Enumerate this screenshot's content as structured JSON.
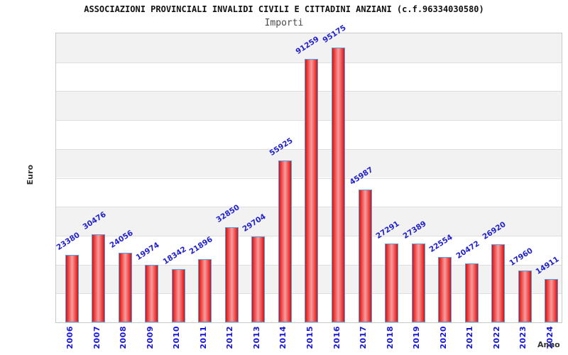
{
  "chart_data": {
    "type": "bar",
    "title": "ASSOCIAZIONI PROVINCIALI INVALIDI CIVILI E CITTADINI ANZIANI (c.f.96334030580)",
    "subtitle": "Importi",
    "xlabel": "Anno",
    "ylabel": "Euro",
    "categories": [
      "2006",
      "2007",
      "2008",
      "2009",
      "2010",
      "2011",
      "2012",
      "2013",
      "2014",
      "2015",
      "2016",
      "2017",
      "2018",
      "2019",
      "2020",
      "2021",
      "2022",
      "2023",
      "2024"
    ],
    "values": [
      23380,
      30476,
      24056,
      19974,
      18342,
      21896,
      32850,
      29704,
      55925,
      91259,
      95175,
      45987,
      27291,
      27389,
      22554,
      20472,
      26920,
      17960,
      14911
    ],
    "ylim": [
      0,
      100000
    ],
    "ytick_step": 10000,
    "legend": "none",
    "grid": "horizontal-bands",
    "colors": {
      "bar_fill_edge": "#c01818",
      "bar_fill_mid": "#ee3333",
      "bar_fill_center": "#f59e9e",
      "bar_border": "#55a0dd",
      "value_label": "#2222cc",
      "tick_label": "#1616d9",
      "band_gray": "#f2f2f2",
      "band_white": "#ffffff",
      "title_color": "#111111",
      "subtitle_color": "#4a4a4a",
      "axis_title_color": "#333333"
    }
  }
}
